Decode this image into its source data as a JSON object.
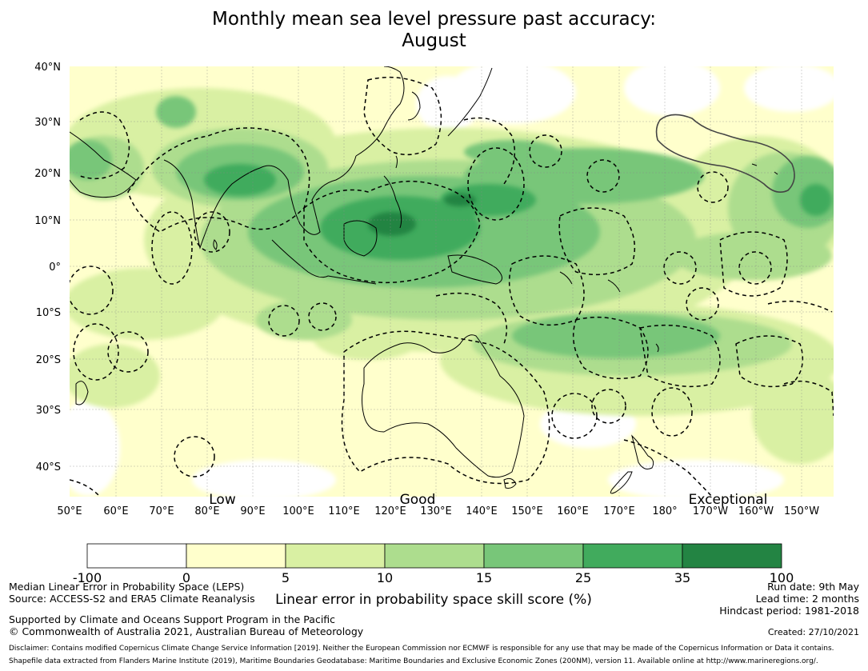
{
  "title": {
    "line1": "Monthly mean sea level pressure past accuracy:",
    "line2": "August"
  },
  "map": {
    "lat_labels": [
      "40°N",
      "30°N",
      "20°N",
      "10°N",
      "0°",
      "10°S",
      "20°S",
      "30°S",
      "40°S"
    ],
    "lon_labels": [
      "50°E",
      "60°E",
      "70°E",
      "80°E",
      "90°E",
      "100°E",
      "110°E",
      "120°E",
      "130°E",
      "140°E",
      "150°E",
      "160°E",
      "170°E",
      "180°",
      "170°W",
      "160°W",
      "150°W"
    ],
    "category_labels": [
      "Low",
      "Good",
      "Exceptional"
    ]
  },
  "colorbar": {
    "tick_labels": [
      "-100",
      "0",
      "5",
      "10",
      "15",
      "25",
      "35",
      "100"
    ],
    "colors": [
      "#ffffff",
      "#ffffcc",
      "#d9f0a3",
      "#addd8e",
      "#78c679",
      "#41ab5d",
      "#238443"
    ],
    "label": "Linear error in probability space skill score (%)"
  },
  "footer": {
    "left_line1": "Median Linear Error in Probability Space (LEPS)",
    "left_line2": "Source: ACCESS-S2 and ERA5 Climate Reanalysis",
    "left_line3": "Supported by Climate and Oceans Support Program in the Pacific",
    "left_line4": "© Commonwealth of Australia 2021, Australian Bureau of Meteorology",
    "run_date": "Run date: 9th May",
    "lead_time": "Lead time: 2 months",
    "hindcast": "Hindcast period: 1981-2018",
    "created": "Created: 27/10/2021",
    "disclaimer1": "Disclaimer: Contains modified Copernicus Climate Change Service Information [2019]. Neither the European Commission nor ECMWF is responsible for any use that may be made of the Copernicus Information or Data it contains.",
    "disclaimer2": "Shapefile data extracted from Flanders Marine Institute (2019), Maritime Boundaries Geodatabase: Maritime Boundaries and Exclusive Economic Zones (200NM), version 11. Available online at http://www.marineregions.org/."
  }
}
